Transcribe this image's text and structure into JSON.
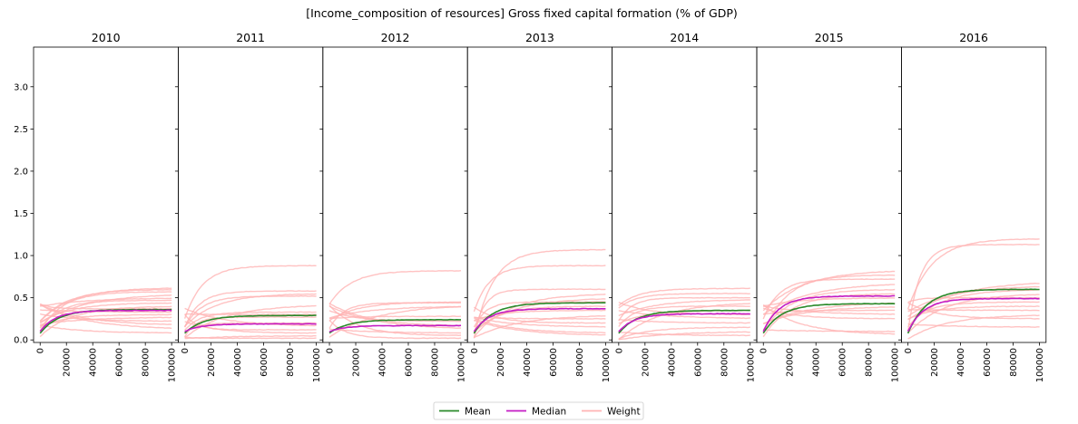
{
  "figure": {
    "suptitle": "[Income_composition of resources] Gross fixed capital formation (% of GDP)"
  },
  "chart_data": {
    "type": "line",
    "title": "[Income_composition of resources] Gross fixed capital formation (% of GDP)",
    "ylim": [
      -0.03,
      3.47
    ],
    "xlim": [
      -5000,
      105000
    ],
    "x_ticks": [
      "0",
      "20000",
      "40000",
      "60000",
      "80000",
      "100000"
    ],
    "y_ticks": [
      "0.0",
      "0.5",
      "1.0",
      "1.5",
      "2.0",
      "2.5",
      "3.0"
    ],
    "grid": false,
    "legend": {
      "placement": "bottom-center",
      "entries": [
        {
          "label": "Mean",
          "color": "#2a8a2a"
        },
        {
          "label": "Median",
          "color": "#c41cc4"
        },
        {
          "label": "Weight",
          "color": "#ffb3b3"
        }
      ]
    },
    "panels": [
      {
        "title": "2010",
        "mean_end": 0.36,
        "median_end": 0.35,
        "weight_ends": [
          0.62,
          0.6,
          0.57,
          0.55,
          0.5,
          0.47,
          0.44,
          0.4,
          0.37,
          0.33,
          0.3,
          0.27,
          0.22,
          0.17,
          0.12,
          0.08
        ]
      },
      {
        "title": "2011",
        "mean_end": 0.29,
        "median_end": 0.19,
        "weight_ends": [
          0.88,
          0.58,
          0.55,
          0.52,
          0.42,
          0.33,
          0.3,
          0.27,
          0.2,
          0.16,
          0.12,
          0.08,
          0.05,
          0.02
        ]
      },
      {
        "title": "2012",
        "mean_end": 0.24,
        "median_end": 0.17,
        "weight_ends": [
          0.82,
          0.45,
          0.44,
          0.42,
          0.4,
          0.28,
          0.22,
          0.16,
          0.12,
          0.08,
          0.05,
          0.02
        ]
      },
      {
        "title": "2013",
        "mean_end": 0.44,
        "median_end": 0.37,
        "weight_ends": [
          1.07,
          0.88,
          0.6,
          0.55,
          0.5,
          0.45,
          0.4,
          0.35,
          0.3,
          0.25,
          0.2,
          0.15,
          0.08,
          0.05
        ]
      },
      {
        "title": "2014",
        "mean_end": 0.35,
        "median_end": 0.31,
        "weight_ends": [
          0.61,
          0.55,
          0.5,
          0.48,
          0.45,
          0.4,
          0.35,
          0.3,
          0.25,
          0.2,
          0.15,
          0.1,
          0.05
        ]
      },
      {
        "title": "2015",
        "mean_end": 0.43,
        "median_end": 0.52,
        "weight_ends": [
          0.83,
          0.77,
          0.72,
          0.68,
          0.6,
          0.55,
          0.5,
          0.45,
          0.4,
          0.35,
          0.3,
          0.25,
          0.1,
          0.06
        ]
      },
      {
        "title": "2016",
        "mean_end": 0.6,
        "median_end": 0.49,
        "weight_ends": [
          1.2,
          1.13,
          0.7,
          0.65,
          0.6,
          0.55,
          0.5,
          0.45,
          0.4,
          0.35,
          0.3,
          0.25,
          0.15
        ]
      }
    ]
  }
}
